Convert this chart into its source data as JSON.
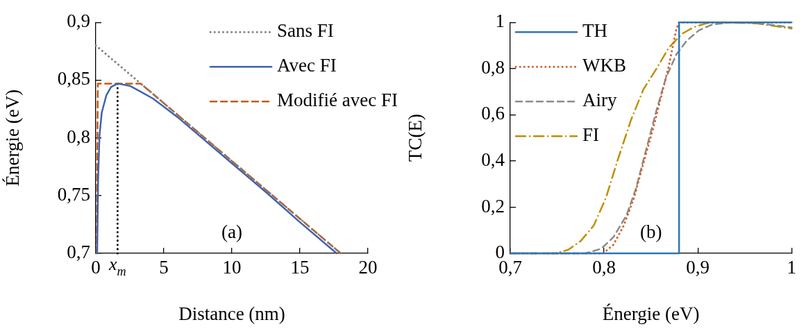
{
  "chart_data": [
    {
      "type": "line",
      "xlabel": "Distance (nm)",
      "ylabel": "Énergie (eV)",
      "xlim": [
        0,
        20
      ],
      "ylim": [
        0.7,
        0.9
      ],
      "xticks": [
        0,
        5,
        10,
        15,
        20
      ],
      "yticks": [
        {
          "value": 0.7,
          "label": "0,7"
        },
        {
          "value": 0.75,
          "label": "0,75"
        },
        {
          "value": 0.8,
          "label": "0,8"
        },
        {
          "value": 0.85,
          "label": "0,85"
        },
        {
          "value": 0.9,
          "label": "0,9"
        }
      ],
      "grid": false,
      "legend": "top right",
      "marker": "none",
      "annotations": [
        "(a)",
        {
          "text": "x$_{m}$",
          "x": 1.6,
          "y": 0.7
        }
      ],
      "series": [
        {
          "name": "Sans FI",
          "color": "#808080",
          "line_style": "dotted",
          "x": [
            0,
            18
          ],
          "values": [
            0.88,
            0.7
          ]
        },
        {
          "name": "Avec FI",
          "color": "#3f63ad",
          "line_style": "solid",
          "x": [
            0.1,
            0.17,
            0.27,
            0.44,
            0.78,
            1.12,
            1.6,
            2.5,
            3.3,
            4.2,
            5,
            6,
            7.5,
            10,
            12.5,
            15,
            17.7
          ],
          "values": [
            0.7,
            0.764,
            0.802,
            0.822,
            0.837,
            0.844,
            0.847,
            0.845,
            0.84,
            0.834,
            0.827,
            0.818,
            0.803,
            0.778,
            0.753,
            0.727,
            0.7
          ]
        },
        {
          "name": "Modifié avec FI",
          "color": "#c55a11",
          "line_style": "dashed",
          "x": [
            0.05,
            0.15,
            3.3,
            18
          ],
          "values": [
            0.7,
            0.847,
            0.847,
            0.7
          ]
        },
        {
          "color": "#000000",
          "line_style": "dotted",
          "x": [
            1.6,
            1.6
          ],
          "values": [
            0.7,
            0.847
          ]
        }
      ]
    },
    {
      "type": "line",
      "xlabel": "Énergie (eV)",
      "ylabel": "TC(E)",
      "xlim": [
        0.7,
        1
      ],
      "ylim": [
        0,
        1
      ],
      "xticks": [
        {
          "value": 0.7,
          "label": "0,7"
        },
        {
          "value": 0.8,
          "label": "0,8"
        },
        {
          "value": 0.9,
          "label": "0,9"
        },
        1
      ],
      "yticks": [
        0,
        {
          "value": 0.2,
          "label": "0,2"
        },
        {
          "value": 0.4,
          "label": "0,4"
        },
        {
          "value": 0.6,
          "label": "0,6"
        },
        {
          "value": 0.8,
          "label": "0,8"
        },
        1
      ],
      "grid": false,
      "legend": "top left",
      "marker": "none",
      "annotations": [
        "(b)"
      ],
      "series": [
        {
          "name": "TH",
          "color": "#2e75b6",
          "line_style": "solid",
          "x": [
            0.7,
            0.88,
            0.88,
            1
          ],
          "values": [
            0,
            0,
            1,
            1
          ]
        },
        {
          "name": "WKB",
          "color": "#d0622a",
          "line_style": "dotted",
          "x": [
            0.7,
            0.78,
            0.799,
            0.81,
            0.821,
            0.832,
            0.842,
            0.853,
            0.861,
            0.869,
            0.877,
            0.88,
            1
          ],
          "values": [
            0,
            0,
            0,
            0.037,
            0.12,
            0.24,
            0.39,
            0.55,
            0.68,
            0.81,
            0.97,
            1,
            1
          ]
        },
        {
          "name": "Airy",
          "color": "#8c8c8c",
          "line_style": "dashed",
          "x": [
            0.7,
            0.78,
            0.797,
            0.81,
            0.824,
            0.834,
            0.845,
            0.856,
            0.866,
            0.877,
            0.888,
            0.901,
            0.915,
            0.936,
            0.963,
            1
          ],
          "values": [
            0,
            0,
            0.02,
            0.07,
            0.165,
            0.28,
            0.45,
            0.62,
            0.76,
            0.86,
            0.92,
            0.965,
            0.99,
            1,
            0.997,
            0.978
          ]
        },
        {
          "name": "FI",
          "color": "#bf9000",
          "line_style": "dashdot",
          "x": [
            0.7,
            0.748,
            0.762,
            0.775,
            0.789,
            0.802,
            0.815,
            0.829,
            0.842,
            0.856,
            0.869,
            0.883,
            0.896,
            0.91,
            0.931,
            0.963,
            1
          ],
          "values": [
            0,
            0,
            0.016,
            0.053,
            0.12,
            0.24,
            0.41,
            0.58,
            0.71,
            0.8,
            0.89,
            0.95,
            0.98,
            0.997,
            1,
            0.995,
            0.973
          ]
        }
      ]
    }
  ]
}
